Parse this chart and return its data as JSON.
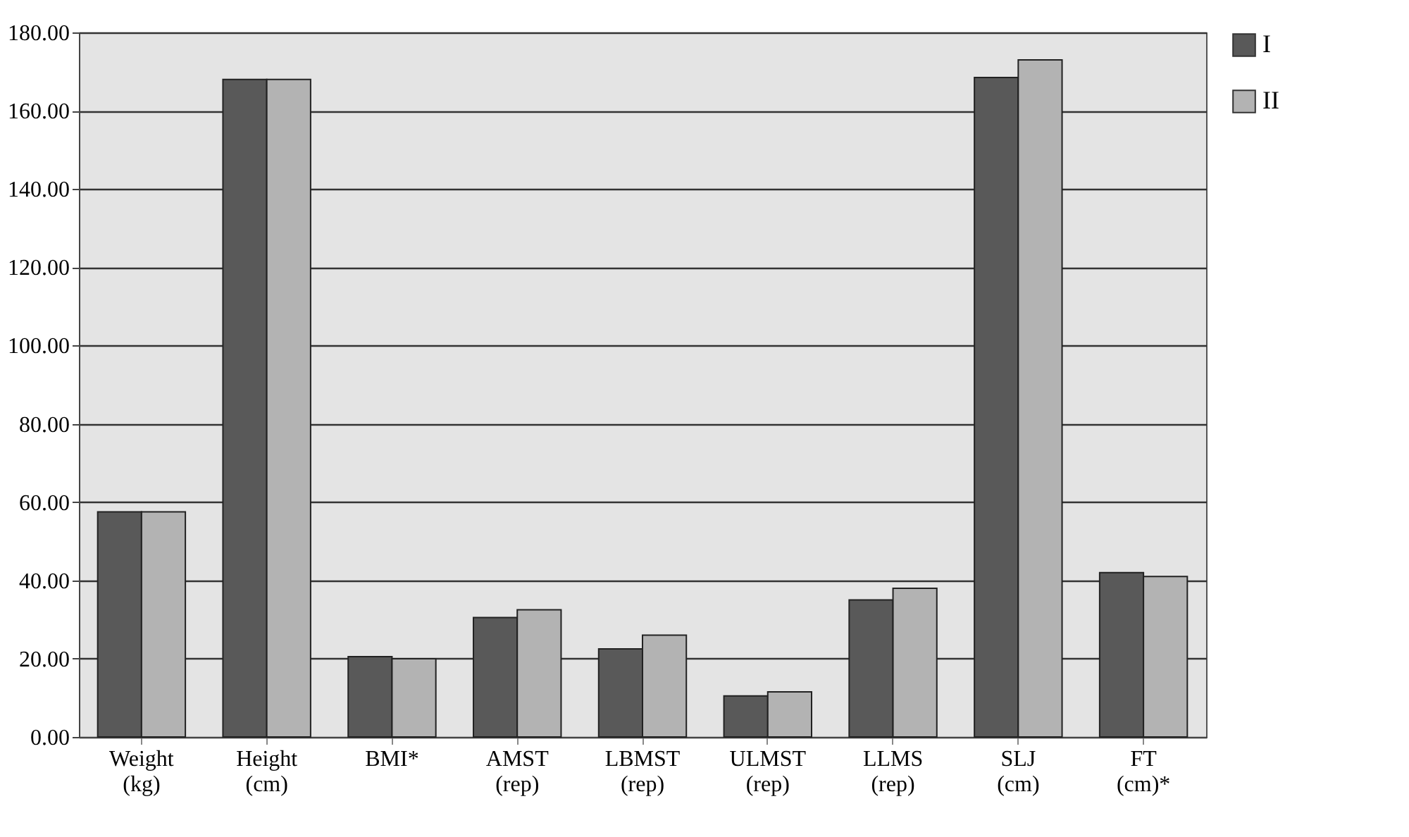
{
  "chart_data": {
    "type": "bar",
    "categories": [
      "Weight (kg)",
      "Height (cm)",
      "BMI*",
      "AMST (rep)",
      "LBMST (rep)",
      "ULMST (rep)",
      "LLMS (rep)",
      "SLJ (cm)",
      "FT (cm)*"
    ],
    "series": [
      {
        "name": "I",
        "color": "#595959",
        "values": [
          57.5,
          168,
          20.5,
          30.5,
          22.5,
          10.5,
          35,
          168.5,
          42
        ]
      },
      {
        "name": "II",
        "color": "#b3b3b3",
        "values": [
          57.5,
          168,
          20,
          32.5,
          26,
          11.5,
          38,
          173,
          41
        ]
      }
    ],
    "ylim": [
      0,
      180
    ],
    "yticks": [
      {
        "value": 0,
        "label": "0.00"
      },
      {
        "value": 20,
        "label": "20.00"
      },
      {
        "value": 40,
        "label": "40.00"
      },
      {
        "value": 60,
        "label": "60.00"
      },
      {
        "value": 80,
        "label": "80.00"
      },
      {
        "value": 100,
        "label": "100.00"
      },
      {
        "value": 120,
        "label": "120.00"
      },
      {
        "value": 140,
        "label": "140.00"
      },
      {
        "value": 160,
        "label": "160.00"
      },
      {
        "value": 180,
        "label": "180.00"
      }
    ],
    "grid": "y",
    "legend": "right"
  }
}
